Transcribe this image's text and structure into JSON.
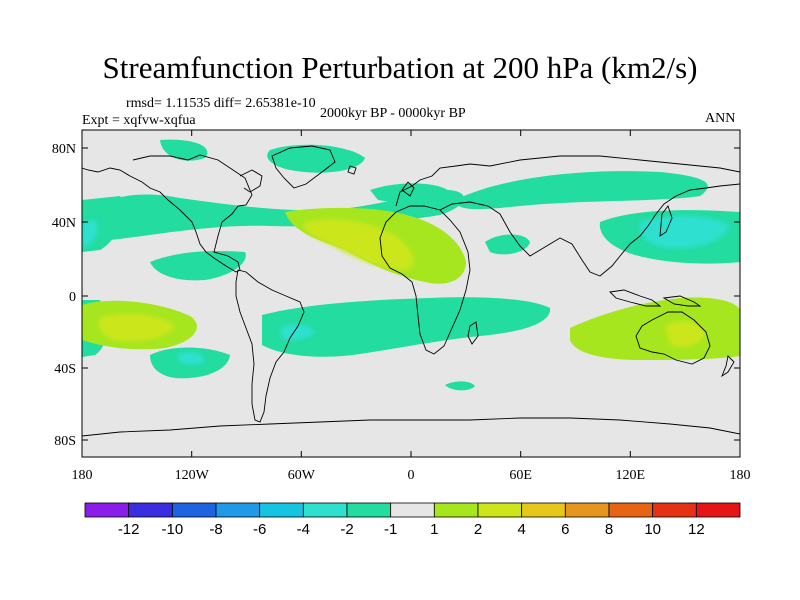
{
  "title": "Streamfunction Perturbation at 200 hPa (km2/s)",
  "stats": "rmsd= 1.11535 diff= 2.65381e-10",
  "experiment": "Expt = xqfvw-xqfua",
  "period": "2000kyr BP - 0000kyr BP",
  "season": "ANN",
  "lat_ticks": [
    "80N",
    "40N",
    "0",
    "40S",
    "80S"
  ],
  "lon_ticks": [
    "180",
    "120W",
    "60W",
    "0",
    "60E",
    "120E",
    "180"
  ],
  "colorbar": {
    "labels": [
      "-12",
      "-10",
      "-8",
      "-6",
      "-4",
      "-2",
      "-1",
      "1",
      "2",
      "4",
      "6",
      "8",
      "10",
      "12"
    ],
    "colors": [
      "#8a1ee8",
      "#3a2ee0",
      "#1e64e0",
      "#1e9ae6",
      "#14c4e0",
      "#2fe0cf",
      "#22dca0",
      "#e6e6e6",
      "#a6e61e",
      "#cce61a",
      "#e6c81a",
      "#e6961e",
      "#e66414",
      "#e63214",
      "#e61414"
    ]
  },
  "field_colors": {
    "neg1": "#22dca0",
    "neg2": "#2fe0cf",
    "pos1": "#a6e61e",
    "pos2": "#cce61a"
  },
  "field_anomalies": [
    {
      "name": "n-atlantic-east-positive",
      "lon": -30,
      "lat": 40,
      "lon_extent": 35,
      "lat_extent": 14,
      "value": 2
    },
    {
      "name": "n-atlantic-east-core",
      "lon": -25,
      "lat": 38,
      "lon_extent": 18,
      "lat_extent": 8,
      "value": 3
    },
    {
      "name": "nw-pacific-negative",
      "lon": 145,
      "lat": 35,
      "lon_extent": 45,
      "lat_extent": 14,
      "value": -1
    },
    {
      "name": "nw-pacific-core",
      "lon": 150,
      "lat": 36,
      "lon_extent": 22,
      "lat_extent": 6,
      "value": -2
    },
    {
      "name": "s-pacific-positive",
      "lon": -150,
      "lat": -18,
      "lon_extent": 35,
      "lat_extent": 14,
      "value": 2
    },
    {
      "name": "s-america-negative",
      "lon": -45,
      "lat": -22,
      "lon_extent": 60,
      "lat_extent": 14,
      "value": -1
    },
    {
      "name": "australia-positive",
      "lon": 145,
      "lat": -20,
      "lon_extent": 40,
      "lat_extent": 14,
      "value": 2
    },
    {
      "name": "australia-core",
      "lon": 150,
      "lat": -22,
      "lon_extent": 12,
      "lat_extent": 7,
      "value": 3
    }
  ]
}
